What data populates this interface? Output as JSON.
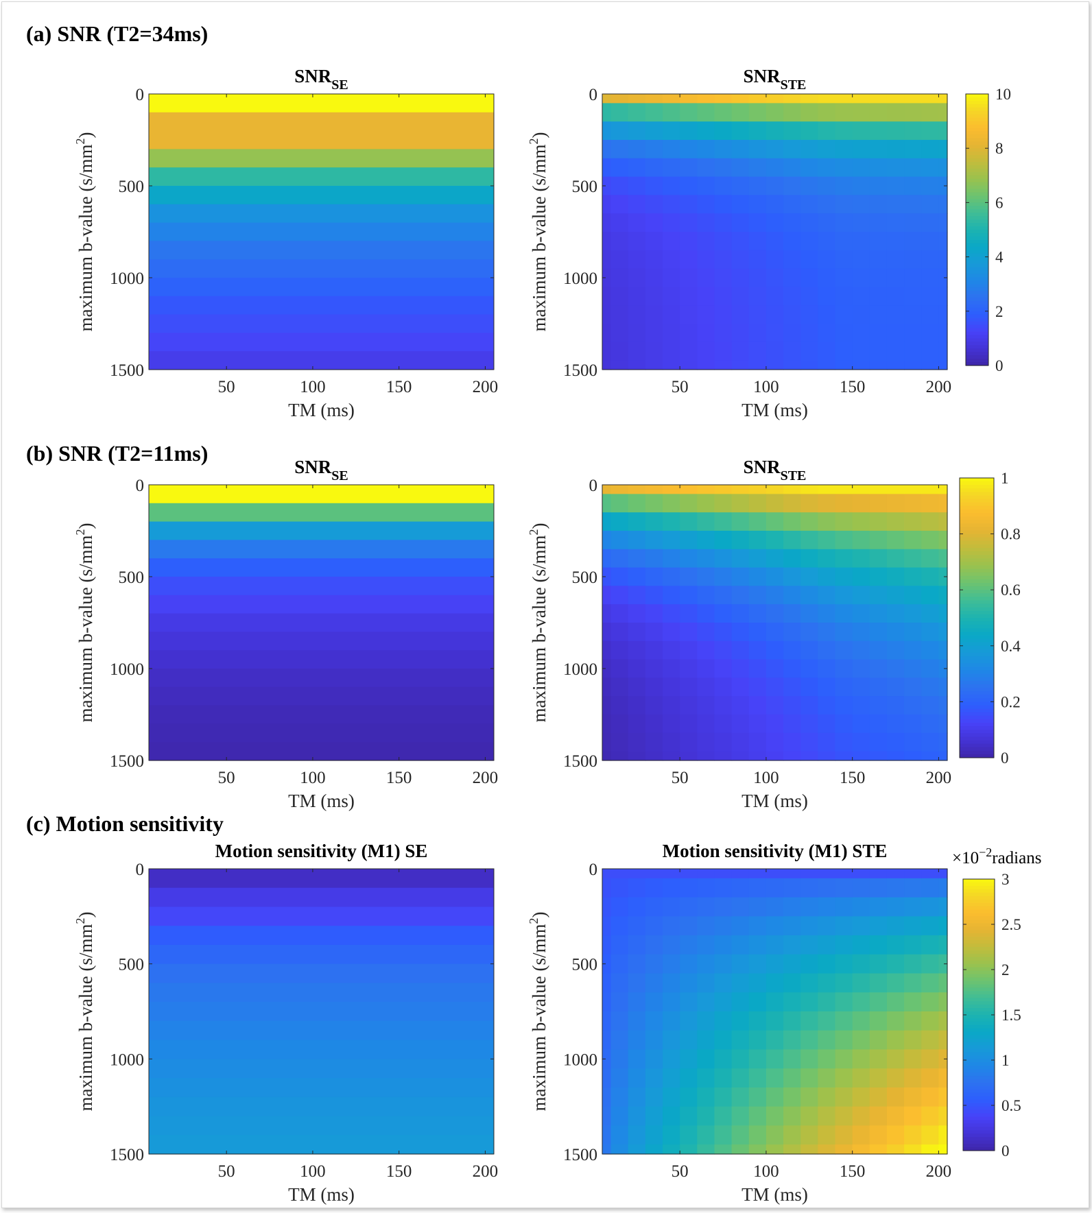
{
  "figure": {
    "sections": [
      {
        "id": "a",
        "title": "(a) SNR (T2=34ms)"
      },
      {
        "id": "b",
        "title": "(b) SNR (T2=11ms)"
      },
      {
        "id": "c",
        "title": "(c) Motion sensitivity"
      }
    ],
    "colorbar_unit_label": {
      "base": "×10",
      "exponent": "−2",
      "unit": "radians"
    }
  },
  "colormap": [
    "#3e26a8",
    "#4433d6",
    "#4743f8",
    "#2d5efd",
    "#2d72f0",
    "#1f87e6",
    "#179ad8",
    "#0aa8c6",
    "#1db3b0",
    "#41bd95",
    "#6dc36f",
    "#9ac24e",
    "#c2bc3c",
    "#e6b433",
    "#fbbd2f",
    "#f5d526",
    "#f9f90f"
  ],
  "chart_data": [
    {
      "type": "heatmap",
      "panel": "a-left",
      "title": "SNR",
      "title_sub": "SE",
      "xlabel": "TM (ms)",
      "ylabel": "maximum b-value (s/mm",
      "ylabel_sup": "2",
      "ylabel_end": ")",
      "x_ticks": [
        "50",
        "100",
        "150",
        "200"
      ],
      "x_tick_values": [
        50,
        100,
        150,
        200
      ],
      "xlim": [
        5,
        205
      ],
      "y_ticks": [
        "0",
        "500",
        "1000",
        "1500"
      ],
      "y_tick_values": [
        0,
        500,
        1000,
        1500
      ],
      "ylim": [
        0,
        1500
      ],
      "clim": [
        0,
        10
      ],
      "rows_b": [
        100,
        300,
        400,
        500,
        600,
        700,
        800,
        900,
        1000,
        1100,
        1200,
        1300,
        1400,
        1500
      ],
      "row_values": [
        10.0,
        8.2,
        6.8,
        5.3,
        4.3,
        3.5,
        3.0,
        2.6,
        2.3,
        2.0,
        1.7,
        1.5,
        1.3,
        1.0
      ],
      "tm_values": [
        5,
        200
      ]
    },
    {
      "type": "heatmap",
      "panel": "a-right",
      "title": "SNR",
      "title_sub": "STE",
      "xlabel": "TM (ms)",
      "ylabel": "maximum b-value (s/mm",
      "ylabel_sup": "2",
      "ylabel_end": ")",
      "x_ticks": [
        "50",
        "100",
        "150",
        "200"
      ],
      "x_tick_values": [
        50,
        100,
        150,
        200
      ],
      "xlim": [
        5,
        205
      ],
      "y_ticks": [
        "0",
        "500",
        "1000",
        "1500"
      ],
      "y_tick_values": [
        0,
        500,
        1000,
        1500
      ],
      "ylim": [
        0,
        1500
      ],
      "clim": [
        0,
        10
      ],
      "tm_values": [
        5,
        15,
        25,
        35,
        45,
        55,
        65,
        75,
        85,
        95,
        105,
        115,
        125,
        135,
        145,
        155,
        165,
        175,
        185,
        195,
        205
      ],
      "b_values": [
        0,
        100,
        200,
        300,
        400,
        500,
        600,
        700,
        800,
        900,
        1000,
        1100,
        1200,
        1300,
        1400,
        1500
      ],
      "model": {
        "kind": "snr_ste",
        "top_min": 8.0,
        "top_max": 9.5,
        "bottom_min": 0.7,
        "bottom_max": 1.9,
        "decay_min": 7.0,
        "decay_max": 6.0
      }
    },
    {
      "type": "heatmap",
      "panel": "b-left",
      "title": "SNR",
      "title_sub": "SE",
      "xlabel": "TM (ms)",
      "ylabel": "maximum b-value (s/mm",
      "ylabel_sup": "2",
      "ylabel_end": ")",
      "x_ticks": [
        "50",
        "100",
        "150",
        "200"
      ],
      "x_tick_values": [
        50,
        100,
        150,
        200
      ],
      "xlim": [
        5,
        205
      ],
      "y_ticks": [
        "0",
        "500",
        "1000",
        "1500"
      ],
      "y_tick_values": [
        0,
        500,
        1000,
        1500
      ],
      "ylim": [
        0,
        1500
      ],
      "clim": [
        0,
        1
      ],
      "rows_b": [
        100,
        200,
        300,
        400,
        500,
        600,
        700,
        800,
        900,
        1000,
        1100,
        1200,
        1300,
        1400,
        1500
      ],
      "row_values": [
        1.0,
        0.6,
        0.38,
        0.27,
        0.19,
        0.15,
        0.12,
        0.09,
        0.07,
        0.055,
        0.04,
        0.03,
        0.02,
        0.015,
        0.01
      ],
      "tm_values": [
        5,
        200
      ]
    },
    {
      "type": "heatmap",
      "panel": "b-right",
      "title": "SNR",
      "title_sub": "STE",
      "xlabel": "TM (ms)",
      "ylabel": "maximum b-value (s/mm",
      "ylabel_sup": "2",
      "ylabel_end": ")",
      "x_ticks": [
        "50",
        "100",
        "150",
        "200"
      ],
      "x_tick_values": [
        50,
        100,
        150,
        200
      ],
      "xlim": [
        5,
        205
      ],
      "y_ticks": [
        "0",
        "500",
        "1000",
        "1500"
      ],
      "y_tick_values": [
        0,
        500,
        1000,
        1500
      ],
      "ylim": [
        0,
        1500
      ],
      "clim": [
        0,
        1
      ],
      "tm_values": [
        5,
        15,
        25,
        35,
        45,
        55,
        65,
        75,
        85,
        95,
        105,
        115,
        125,
        135,
        145,
        155,
        165,
        175,
        185,
        195,
        205
      ],
      "b_values": [
        0,
        100,
        200,
        300,
        400,
        500,
        600,
        700,
        800,
        900,
        1000,
        1100,
        1200,
        1300,
        1400,
        1500
      ],
      "model": {
        "kind": "snr_ste",
        "top_min": 0.82,
        "top_max": 0.97,
        "bottom_min": 0.01,
        "bottom_max": 0.13,
        "decay_min": 5.0,
        "decay_max": 2.4
      }
    },
    {
      "type": "heatmap",
      "panel": "c-left",
      "title": "Motion sensitivity (M1) SE",
      "xlabel": "TM (ms)",
      "ylabel": "maximum b-value (s/mm",
      "ylabel_sup": "2",
      "ylabel_end": ")",
      "x_ticks": [
        "50",
        "100",
        "150",
        "200"
      ],
      "x_tick_values": [
        50,
        100,
        150,
        200
      ],
      "xlim": [
        5,
        205
      ],
      "y_ticks": [
        "0",
        "500",
        "1000",
        "1500"
      ],
      "y_tick_values": [
        0,
        500,
        1000,
        1500
      ],
      "ylim": [
        0,
        1500
      ],
      "clim": [
        0,
        3
      ],
      "rows_b": [
        100,
        200,
        300,
        400,
        500,
        600,
        700,
        800,
        900,
        1000,
        1100,
        1200,
        1300,
        1400,
        1500
      ],
      "row_values": [
        0.12,
        0.28,
        0.4,
        0.55,
        0.65,
        0.74,
        0.8,
        0.85,
        0.9,
        0.95,
        0.99,
        1.03,
        1.07,
        1.1,
        1.13
      ],
      "tm_values": [
        5,
        200
      ]
    },
    {
      "type": "heatmap",
      "panel": "c-right",
      "title": "Motion sensitivity (M1) STE",
      "xlabel": "TM (ms)",
      "ylabel": "maximum b-value (s/mm",
      "ylabel_sup": "2",
      "ylabel_end": ")",
      "x_ticks": [
        "50",
        "100",
        "150",
        "200"
      ],
      "x_tick_values": [
        50,
        100,
        150,
        200
      ],
      "xlim": [
        5,
        205
      ],
      "y_ticks": [
        "0",
        "500",
        "1000",
        "1500"
      ],
      "y_tick_values": [
        0,
        500,
        1000,
        1500
      ],
      "ylim": [
        0,
        1500
      ],
      "clim": [
        0,
        3
      ],
      "tm_values": [
        5,
        15,
        25,
        35,
        45,
        55,
        65,
        75,
        85,
        95,
        105,
        115,
        125,
        135,
        145,
        155,
        165,
        175,
        185,
        195,
        205
      ],
      "b_values": [
        0,
        100,
        200,
        300,
        400,
        500,
        600,
        700,
        800,
        900,
        1000,
        1100,
        1200,
        1300,
        1400,
        1500
      ],
      "model": {
        "kind": "motion_ste",
        "base": 0.45,
        "coef": 2.6
      }
    }
  ],
  "colorbars": [
    {
      "panel": "a",
      "clim": [
        0,
        10
      ],
      "ticks": [
        "0",
        "2",
        "4",
        "6",
        "8",
        "10"
      ],
      "tick_values": [
        0,
        2,
        4,
        6,
        8,
        10
      ]
    },
    {
      "panel": "b",
      "clim": [
        0,
        1
      ],
      "ticks": [
        "0",
        "0.2",
        "0.4",
        "0.6",
        "0.8",
        "1"
      ],
      "tick_values": [
        0,
        0.2,
        0.4,
        0.6,
        0.8,
        1
      ]
    },
    {
      "panel": "c",
      "clim": [
        0,
        3
      ],
      "ticks": [
        "0",
        "0.5",
        "1",
        "1.5",
        "2",
        "2.5",
        "3"
      ],
      "tick_values": [
        0,
        0.5,
        1,
        1.5,
        2,
        2.5,
        3
      ]
    }
  ]
}
